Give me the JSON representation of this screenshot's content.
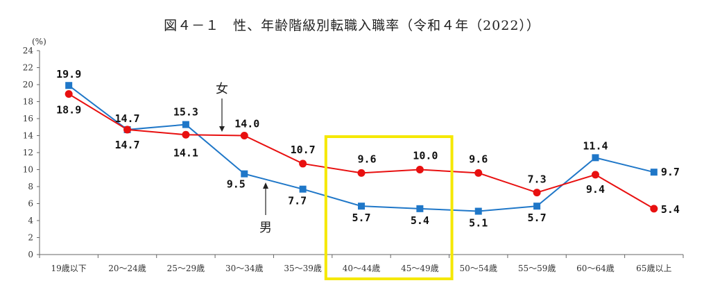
{
  "chart_data": {
    "type": "line",
    "title": "図４－１　性、年齢階級別転職入職率（令和４年（2022））",
    "ylabel": "(%)",
    "xlabel": "",
    "ylim": [
      0,
      24
    ],
    "yticks": [
      0,
      2,
      4,
      6,
      8,
      10,
      12,
      14,
      16,
      18,
      20,
      22,
      24
    ],
    "categories": [
      "19歳以下",
      "20～24歳",
      "25～29歳",
      "30～34歳",
      "35～39歳",
      "40～44歳",
      "45～49歳",
      "50～54歳",
      "55～59歳",
      "60～64歳",
      "65歳以上"
    ],
    "series": [
      {
        "name": "男",
        "color": "#1f77c8",
        "marker": "square",
        "values": [
          19.9,
          14.7,
          15.3,
          9.5,
          7.7,
          5.7,
          5.4,
          5.1,
          5.7,
          11.4,
          9.7
        ],
        "labels": [
          "19.9",
          "14.7",
          "15.3",
          "9.5",
          "7.7",
          "5.7",
          "5.4",
          "5.1",
          "5.7",
          "11.4",
          "9.7"
        ]
      },
      {
        "name": "女",
        "color": "#e81010",
        "marker": "circle",
        "values": [
          18.9,
          14.7,
          14.1,
          14.0,
          10.7,
          9.6,
          10.0,
          9.6,
          7.3,
          9.4,
          5.4
        ],
        "labels": [
          "18.9",
          "14.7",
          "14.1",
          "14.0",
          "10.7",
          "9.6",
          "10.0",
          "9.6",
          "7.3",
          "9.4",
          "5.4"
        ]
      }
    ],
    "grid": false,
    "annotations": [
      "女",
      "男"
    ],
    "highlight": {
      "from_category": "40～44歳",
      "to_category": "45～49歳",
      "color": "#f5e800"
    }
  }
}
